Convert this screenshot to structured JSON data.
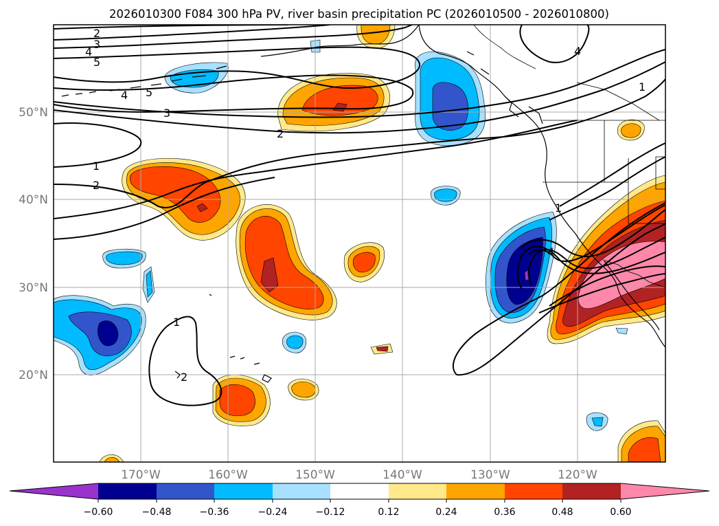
{
  "title": "2026010300 F084 300 hPa PV, river basin precipitation PC (2026010500 - 2026010800)",
  "colors": {
    "neg_060": "#9933cc",
    "neg_048": "#000090",
    "neg_036": "#3355cc",
    "neg_024": "#00bbff",
    "neg_012": "#a8e0ff",
    "zero": "#ffffff",
    "pos_012": "#ffe98a",
    "pos_024": "#ffa500",
    "pos_036": "#ff4500",
    "pos_048": "#b22222",
    "pos_060": "#ff88aa",
    "coast": "#000000",
    "grid": "#aaaaaa",
    "axis_text": "#777777"
  },
  "map": {
    "lon_range": [
      -180,
      -110
    ],
    "lat_range": [
      10,
      60
    ],
    "lat_ticks": [
      "50°N",
      "40°N",
      "30°N",
      "20°N"
    ],
    "lon_ticks": [
      "170°W",
      "160°W",
      "150°W",
      "140°W",
      "130°W",
      "120°W"
    ],
    "contour_labels": [
      "2",
      "3",
      "4",
      "5",
      "4",
      "5",
      "3",
      "2",
      "1",
      "2",
      "1",
      "2",
      "4",
      "1",
      "4",
      "1"
    ]
  },
  "colorbar": {
    "ticks": [
      "−0.60",
      "−0.48",
      "−0.36",
      "−0.24",
      "−0.12",
      "0.12",
      "0.24",
      "0.36",
      "0.48",
      "0.60"
    ],
    "extend": "both"
  }
}
